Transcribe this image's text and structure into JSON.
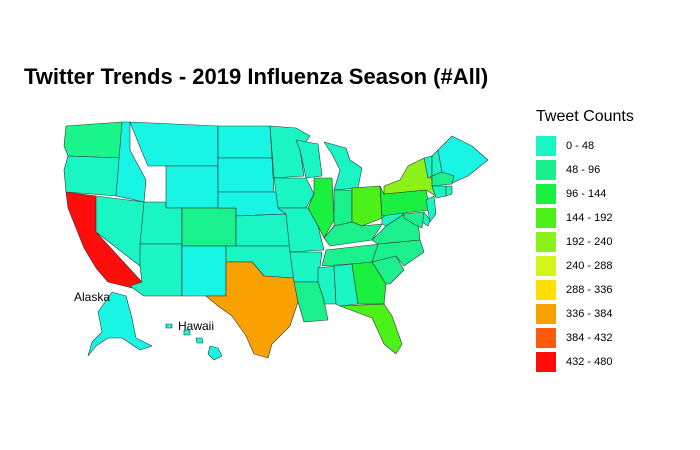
{
  "title": "Twitter Trends - 2019 Influenza Season (#All)",
  "legend": {
    "title": "Tweet Counts",
    "bins": [
      {
        "label": "0 - 48",
        "color": "#19F5C4"
      },
      {
        "label": "48 - 96",
        "color": "#19F08C"
      },
      {
        "label": "96 - 144",
        "color": "#19F040"
      },
      {
        "label": "144 - 192",
        "color": "#4DF019"
      },
      {
        "label": "192 - 240",
        "color": "#8CF019"
      },
      {
        "label": "240 - 288",
        "color": "#D4F51A"
      },
      {
        "label": "288 - 336",
        "color": "#FFE000"
      },
      {
        "label": "336 - 384",
        "color": "#F9A101"
      },
      {
        "label": "384 - 432",
        "color": "#FF5A0A"
      },
      {
        "label": "432 - 480",
        "color": "#FF0D0D"
      }
    ]
  },
  "labels": {
    "alaska": "Alaska",
    "hawaii": "Hawaii"
  },
  "state_colors": {
    "WA": "#1AF58C",
    "OR": "#1AF5C4",
    "CA": "#FF0D0D",
    "ID": "#19F5E4",
    "NV": "#1AF5C4",
    "MT": "#19F5E4",
    "WY": "#19F5E4",
    "UT": "#1AF5C4",
    "AZ": "#1AF5C4",
    "CO": "#1AF08C",
    "NM": "#19F5E4",
    "ND": "#19F5E4",
    "SD": "#19F5E4",
    "NE": "#19F5E4",
    "KS": "#1AF5C4",
    "OK": "#1AF5C4",
    "TX": "#F9A101",
    "MN": "#1AF5C4",
    "IA": "#1AF5C4",
    "MO": "#1AF5C4",
    "AR": "#1AF5C4",
    "LA": "#1AF08C",
    "WI": "#1AF5C4",
    "IL": "#19F040",
    "MI": "#1AF5C4",
    "IN": "#1AF08C",
    "OH": "#4DF019",
    "KY": "#1AF08C",
    "TN": "#1AF08C",
    "MS": "#1AF5C4",
    "AL": "#1AF5C4",
    "GA": "#19F040",
    "FL": "#4DF019",
    "SC": "#1AF08C",
    "NC": "#1AF08C",
    "VA": "#1AF08C",
    "WV": "#1AF5C4",
    "PA": "#19F040",
    "NY": "#8CF019",
    "VT": "#1AF5C4",
    "NH": "#1AF5C4",
    "ME": "#19F5E4",
    "MA": "#1AF08C",
    "CT": "#1AF5C4",
    "RI": "#1AF5C4",
    "NJ": "#1AF5C4",
    "DE": "#1AF5C4",
    "MD": "#1AF08C",
    "AK": "#19F5E4",
    "HI": "#19F5E4"
  }
}
